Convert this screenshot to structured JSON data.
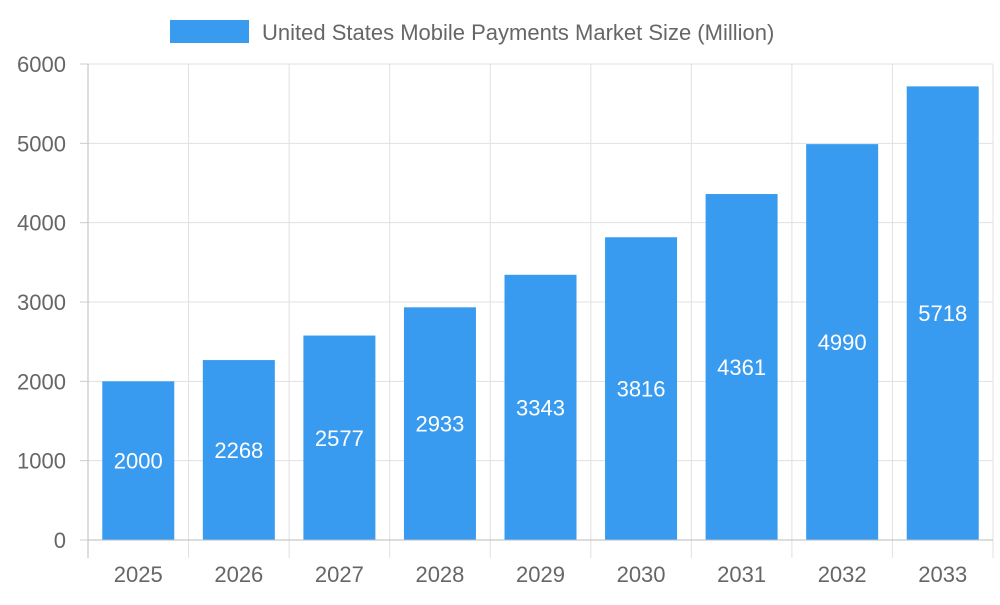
{
  "chart_data": {
    "type": "bar",
    "title": "",
    "xlabel": "",
    "ylabel": "",
    "categories": [
      "2025",
      "2026",
      "2027",
      "2028",
      "2029",
      "2030",
      "2031",
      "2032",
      "2033"
    ],
    "series": [
      {
        "name": "United States Mobile Payments Market Size (Million)",
        "values": [
          2000,
          2268,
          2577,
          2933,
          3343,
          3816,
          4361,
          4990,
          5718
        ],
        "color": "#389BF0"
      }
    ],
    "ylim": [
      0,
      6000
    ],
    "yticks": [
      0,
      1000,
      2000,
      3000,
      4000,
      5000,
      6000
    ],
    "grid": true,
    "legend": "top",
    "data_labels": true
  }
}
